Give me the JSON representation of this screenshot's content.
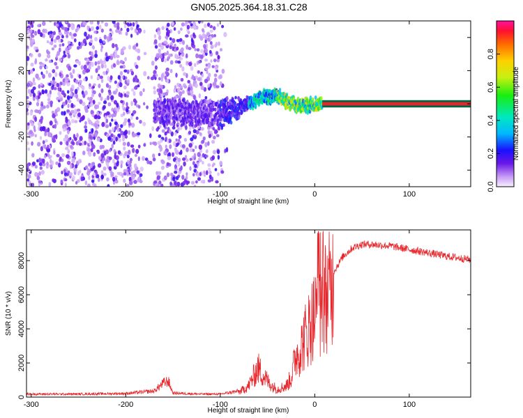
{
  "title": "GN05.2025.364.18.31.C28",
  "colors": {
    "line": "#e8252a",
    "trace": "#e8252a",
    "trace_border": "#006644"
  },
  "chart_data": [
    {
      "type": "heatmap",
      "xlabel": "Height of straight line (km)",
      "ylabel": "Frequency (Hz)",
      "xlim": [
        -305,
        165
      ],
      "ylim": [
        -50,
        50
      ],
      "x_ticks": [
        -300,
        -200,
        -100,
        0,
        100
      ],
      "y_ticks": [
        -40,
        -20,
        0,
        20,
        40
      ],
      "x_tick_labels": [
        "-300",
        "-200",
        "-100",
        "0",
        "100"
      ],
      "y_tick_labels": [
        "-40",
        "-20",
        "0",
        "20",
        "40"
      ],
      "colorbar": {
        "label": "Normalized spectral amplitude",
        "range": [
          0,
          1
        ],
        "ticks": [
          0.0,
          0.2,
          0.4,
          0.6,
          0.8
        ],
        "tick_labels": [
          "0.0",
          "0.2",
          "0.4",
          "0.6",
          "0.8"
        ]
      },
      "description_points": {
        "noise_region_km": [
          -305,
          -90
        ],
        "signal_center_hz": [
          [
            -150,
            -5
          ],
          [
            -100,
            -6
          ],
          [
            -75,
            -1
          ],
          [
            -55,
            4
          ],
          [
            -40,
            5
          ],
          [
            -25,
            0
          ],
          [
            -10,
            -1
          ],
          [
            5,
            0
          ],
          [
            165,
            0
          ]
        ],
        "strong_constant_from_km": 8
      }
    },
    {
      "type": "line",
      "xlabel": "Height of straight line (km)",
      "ylabel": "SNR (10 * v/v)",
      "xlim": [
        -305,
        165
      ],
      "ylim": [
        0,
        9800
      ],
      "x_ticks": [
        -300,
        -200,
        -100,
        0,
        100
      ],
      "y_ticks": [
        0,
        2000,
        4000,
        6000,
        8000
      ],
      "x_tick_labels": [
        "-300",
        "-200",
        "-100",
        "0",
        "100"
      ],
      "y_tick_labels": [
        "0",
        "2000",
        "4000",
        "6000",
        "8000"
      ],
      "series": [
        {
          "name": "SNR",
          "x": [
            -305,
            -250,
            -200,
            -170,
            -160,
            -155,
            -150,
            -120,
            -100,
            -80,
            -70,
            -60,
            -55,
            -50,
            -45,
            -40,
            -30,
            -25,
            -20,
            -15,
            -10,
            -5,
            0,
            5,
            10,
            15,
            20,
            30,
            40,
            50,
            60,
            80,
            100,
            120,
            140,
            165
          ],
          "y": [
            150,
            150,
            180,
            300,
            700,
            800,
            200,
            150,
            150,
            300,
            700,
            1800,
            1400,
            1000,
            700,
            500,
            700,
            1200,
            2600,
            3000,
            3800,
            4500,
            5200,
            4800,
            6200,
            6500,
            7400,
            8300,
            8800,
            9000,
            9000,
            8900,
            8700,
            8500,
            8300,
            8100
          ]
        }
      ]
    }
  ]
}
